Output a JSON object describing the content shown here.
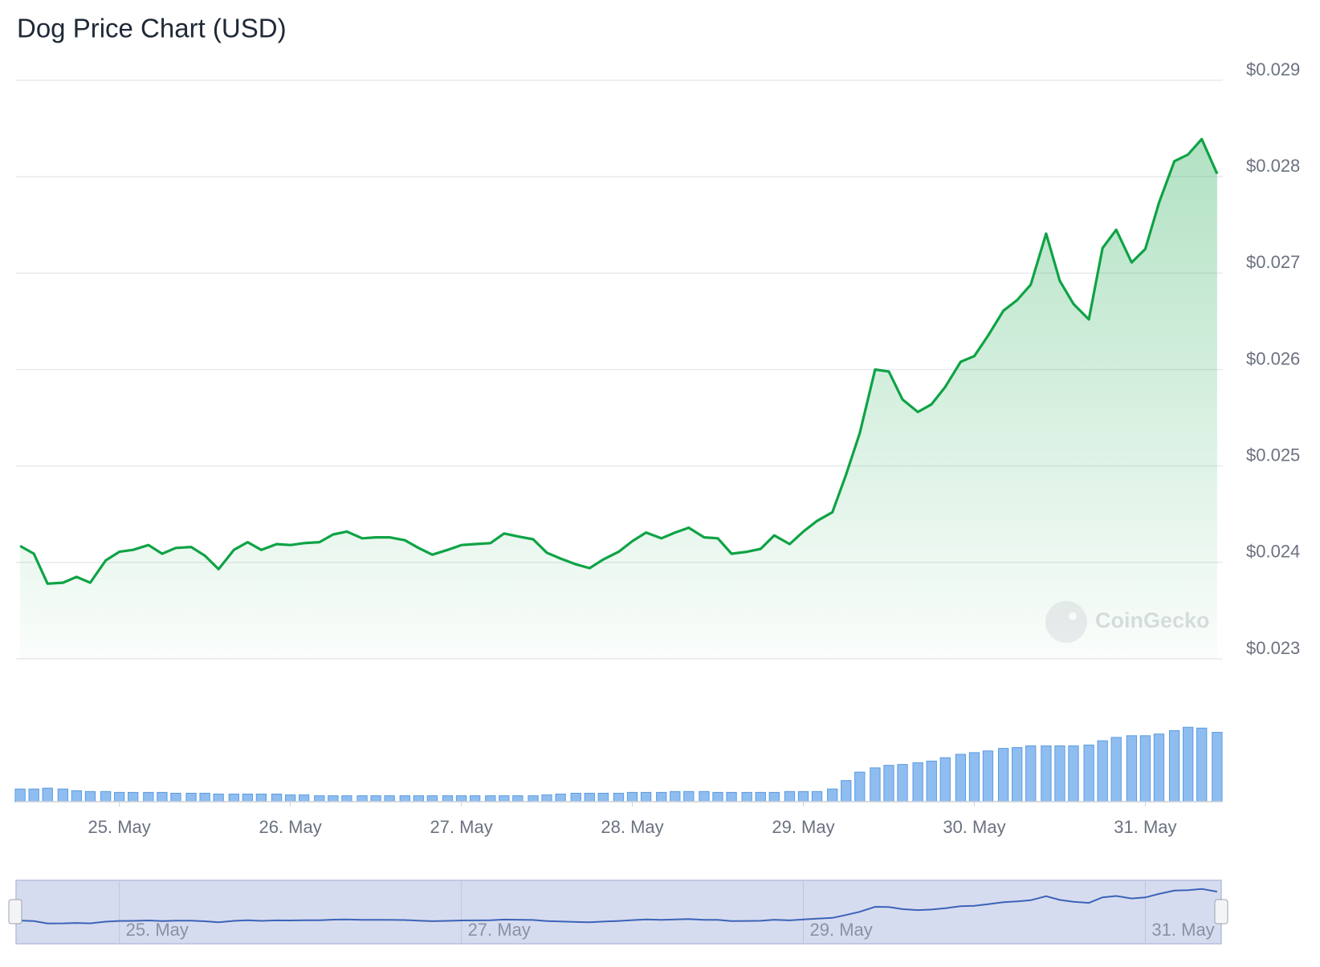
{
  "chart_data": {
    "type": "line",
    "title": "Dog Price Chart (USD)",
    "watermark": "CoinGecko",
    "x": [
      24.42,
      24.5,
      24.58,
      24.67,
      24.75,
      24.83,
      24.92,
      25,
      25.08,
      25.17,
      25.25,
      25.33,
      25.42,
      25.5,
      25.58,
      25.67,
      25.75,
      25.83,
      25.92,
      26,
      26.08,
      26.17,
      26.25,
      26.33,
      26.42,
      26.5,
      26.58,
      26.67,
      26.75,
      26.83,
      26.92,
      27,
      27.08,
      27.17,
      27.25,
      27.33,
      27.42,
      27.5,
      27.58,
      27.67,
      27.75,
      27.83,
      27.92,
      28,
      28.08,
      28.17,
      28.25,
      28.33,
      28.42,
      28.5,
      28.58,
      28.67,
      28.75,
      28.83,
      28.92,
      29,
      29.08,
      29.17,
      29.25,
      29.33,
      29.42,
      29.5,
      29.58,
      29.67,
      29.75,
      29.83,
      29.92,
      30,
      30.08,
      30.17,
      30.25,
      30.33,
      30.42,
      30.5,
      30.58,
      30.67,
      30.75,
      30.83,
      30.92,
      31,
      31.08,
      31.17,
      31.25,
      31.33,
      31.42
    ],
    "series": [
      {
        "color": "#0ea345",
        "values": [
          0.02417,
          0.02409,
          0.02378,
          0.02379,
          0.02385,
          0.02379,
          0.02402,
          0.02411,
          0.02413,
          0.02418,
          0.02409,
          0.02415,
          0.02416,
          0.02407,
          0.02393,
          0.02413,
          0.02421,
          0.02413,
          0.02419,
          0.02418,
          0.0242,
          0.02421,
          0.02429,
          0.02432,
          0.02425,
          0.02426,
          0.02426,
          0.02423,
          0.02415,
          0.02408,
          0.02413,
          0.02418,
          0.02419,
          0.0242,
          0.0243,
          0.02427,
          0.02424,
          0.0241,
          0.02404,
          0.02398,
          0.02394,
          0.02403,
          0.02411,
          0.02422,
          0.02431,
          0.02425,
          0.02431,
          0.02436,
          0.02426,
          0.02425,
          0.02409,
          0.02411,
          0.02414,
          0.02428,
          0.02419,
          0.02432,
          0.02443,
          0.02452,
          0.02491,
          0.02534,
          0.026,
          0.02598,
          0.02569,
          0.02556,
          0.02564,
          0.02582,
          0.02608,
          0.02614,
          0.02635,
          0.02661,
          0.02672,
          0.02688,
          0.02741,
          0.02692,
          0.02668,
          0.02652,
          0.02726,
          0.02745,
          0.02711,
          0.02725,
          0.02773,
          0.02816,
          0.02823,
          0.02839,
          0.02803
        ]
      }
    ],
    "volume": [
      15,
      15,
      16,
      15,
      13,
      12,
      12,
      11,
      11,
      11,
      11,
      10,
      10,
      10,
      9,
      9,
      9,
      9,
      9,
      8,
      8,
      7,
      7,
      7,
      7,
      7,
      7,
      7,
      7,
      7,
      7,
      7,
      7,
      7,
      7,
      7,
      7,
      8,
      9,
      10,
      10,
      10,
      10,
      11,
      11,
      11,
      12,
      12,
      12,
      11,
      11,
      11,
      11,
      11,
      12,
      12,
      12,
      15,
      25,
      35,
      40,
      43,
      44,
      46,
      48,
      52,
      56,
      58,
      60,
      63,
      64,
      66,
      66,
      66,
      66,
      67,
      72,
      76,
      78,
      78,
      80,
      84,
      88,
      87,
      82
    ],
    "volume_color": "#8fbdf0",
    "xlim": [
      24.41,
      31.43
    ],
    "xticks": [
      {
        "value": 25,
        "label": "25. May"
      },
      {
        "value": 26,
        "label": "26. May"
      },
      {
        "value": 27,
        "label": "27. May"
      },
      {
        "value": 28,
        "label": "28. May"
      },
      {
        "value": 29,
        "label": "29. May"
      },
      {
        "value": 30,
        "label": "30. May"
      },
      {
        "value": 31,
        "label": "31. May"
      }
    ],
    "ylim": [
      0.023,
      0.029
    ],
    "yticks": [
      {
        "value": 0.023,
        "label": "$0.023"
      },
      {
        "value": 0.024,
        "label": "$0.024"
      },
      {
        "value": 0.025,
        "label": "$0.025"
      },
      {
        "value": 0.026,
        "label": "$0.026"
      },
      {
        "value": 0.027,
        "label": "$0.027"
      },
      {
        "value": 0.028,
        "label": "$0.028"
      },
      {
        "value": 0.029,
        "label": "$0.029"
      }
    ],
    "grid": true,
    "navigator_ticks": [
      0,
      2,
      4,
      6
    ]
  }
}
